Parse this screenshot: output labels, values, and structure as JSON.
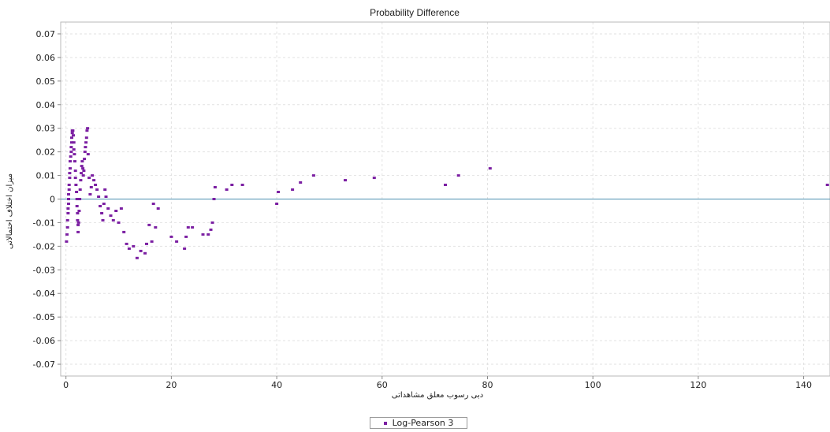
{
  "chart_data": {
    "type": "scatter",
    "title": "Probability Difference",
    "xlabel": "دبی رسوب معلق مشاهداتی",
    "ylabel": "میزان اختلاف احتمالاتی",
    "xlim": [
      -1,
      145
    ],
    "ylim": [
      -0.075,
      0.075
    ],
    "x_ticks": [
      0,
      20,
      40,
      60,
      80,
      100,
      120,
      140
    ],
    "y_ticks": [
      0.07,
      0.06,
      0.05,
      0.04,
      0.03,
      0.02,
      0.01,
      0,
      -0.01,
      -0.02,
      -0.03,
      -0.04,
      -0.05,
      -0.06,
      -0.07
    ],
    "grid": true,
    "legend_position": "bottom-center",
    "colors": {
      "series": "#7b1fa2",
      "zero_line": "#4a8fb0",
      "grid": "#e2e2e2"
    },
    "reference_line": {
      "y": 0
    },
    "series": [
      {
        "name": "Log-Pearson 3",
        "points": [
          [
            0.1,
            -0.018
          ],
          [
            0.2,
            -0.015
          ],
          [
            0.3,
            -0.012
          ],
          [
            0.3,
            -0.009
          ],
          [
            0.4,
            -0.006
          ],
          [
            0.4,
            -0.004
          ],
          [
            0.5,
            -0.002
          ],
          [
            0.5,
            0.0
          ],
          [
            0.5,
            0.002
          ],
          [
            0.6,
            0.004
          ],
          [
            0.6,
            0.006
          ],
          [
            0.7,
            0.009
          ],
          [
            0.7,
            0.011
          ],
          [
            0.8,
            0.013
          ],
          [
            0.8,
            0.016
          ],
          [
            0.9,
            0.018
          ],
          [
            1.0,
            0.02
          ],
          [
            1.0,
            0.022
          ],
          [
            1.1,
            0.024
          ],
          [
            1.1,
            0.026
          ],
          [
            1.2,
            0.028
          ],
          [
            1.2,
            0.029
          ],
          [
            1.3,
            0.029
          ],
          [
            1.4,
            0.027
          ],
          [
            1.5,
            0.024
          ],
          [
            1.5,
            0.021
          ],
          [
            1.6,
            0.019
          ],
          [
            1.7,
            0.016
          ],
          [
            1.8,
            0.012
          ],
          [
            1.8,
            0.009
          ],
          [
            1.9,
            0.006
          ],
          [
            2.0,
            0.003
          ],
          [
            2.1,
            0.0
          ],
          [
            2.1,
            -0.003
          ],
          [
            2.2,
            -0.006
          ],
          [
            2.2,
            -0.009
          ],
          [
            2.3,
            -0.011
          ],
          [
            2.3,
            -0.014
          ],
          [
            2.4,
            -0.01
          ],
          [
            2.5,
            -0.005
          ],
          [
            2.6,
            0.0
          ],
          [
            2.7,
            0.004
          ],
          [
            2.8,
            0.008
          ],
          [
            2.9,
            0.011
          ],
          [
            3.0,
            0.014
          ],
          [
            3.1,
            0.016
          ],
          [
            3.2,
            0.013
          ],
          [
            3.3,
            0.01
          ],
          [
            3.4,
            0.012
          ],
          [
            3.5,
            0.017
          ],
          [
            3.6,
            0.02
          ],
          [
            3.7,
            0.022
          ],
          [
            3.8,
            0.024
          ],
          [
            3.9,
            0.026
          ],
          [
            4.0,
            0.029
          ],
          [
            4.1,
            0.03
          ],
          [
            4.2,
            0.019
          ],
          [
            4.4,
            0.009
          ],
          [
            4.6,
            0.002
          ],
          [
            4.8,
            0.005
          ],
          [
            5.0,
            0.01
          ],
          [
            5.3,
            0.008
          ],
          [
            5.6,
            0.006
          ],
          [
            5.9,
            0.004
          ],
          [
            6.2,
            0.001
          ],
          [
            6.5,
            -0.003
          ],
          [
            6.8,
            -0.006
          ],
          [
            7.0,
            -0.009
          ],
          [
            7.2,
            -0.002
          ],
          [
            7.4,
            0.004
          ],
          [
            7.6,
            0.001
          ],
          [
            8.0,
            -0.004
          ],
          [
            8.5,
            -0.007
          ],
          [
            9.0,
            -0.009
          ],
          [
            9.5,
            -0.005
          ],
          [
            10.0,
            -0.01
          ],
          [
            10.5,
            -0.004
          ],
          [
            11.0,
            -0.014
          ],
          [
            11.5,
            -0.019
          ],
          [
            12.0,
            -0.021
          ],
          [
            12.8,
            -0.02
          ],
          [
            13.5,
            -0.025
          ],
          [
            14.2,
            -0.022
          ],
          [
            15.0,
            -0.023
          ],
          [
            15.3,
            -0.019
          ],
          [
            15.8,
            -0.011
          ],
          [
            16.3,
            -0.018
          ],
          [
            16.6,
            -0.002
          ],
          [
            17.0,
            -0.012
          ],
          [
            17.5,
            -0.004
          ],
          [
            20.0,
            -0.016
          ],
          [
            21.0,
            -0.018
          ],
          [
            22.5,
            -0.021
          ],
          [
            22.8,
            -0.016
          ],
          [
            23.2,
            -0.012
          ],
          [
            24.0,
            -0.012
          ],
          [
            26.0,
            -0.015
          ],
          [
            27.0,
            -0.015
          ],
          [
            27.5,
            -0.013
          ],
          [
            27.8,
            -0.01
          ],
          [
            28.1,
            0.0
          ],
          [
            28.3,
            0.005
          ],
          [
            30.5,
            0.004
          ],
          [
            31.5,
            0.006
          ],
          [
            33.5,
            0.006
          ],
          [
            40.0,
            -0.002
          ],
          [
            40.3,
            0.003
          ],
          [
            43.0,
            0.004
          ],
          [
            44.5,
            0.007
          ],
          [
            47.0,
            0.01
          ],
          [
            53.0,
            0.008
          ],
          [
            58.5,
            0.009
          ],
          [
            72.0,
            0.006
          ],
          [
            74.5,
            0.01
          ],
          [
            80.5,
            0.013
          ],
          [
            144.5,
            0.006
          ]
        ]
      }
    ]
  }
}
